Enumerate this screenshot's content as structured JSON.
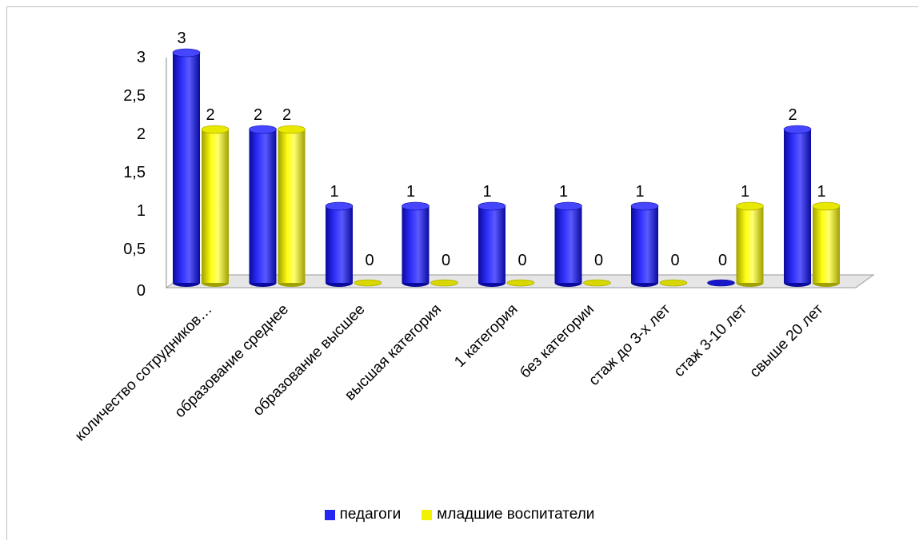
{
  "chart_data": {
    "type": "bar",
    "categories": [
      "количество сотрудников…",
      "образование среднее",
      "образование высшее",
      "высшая категория",
      "1 категория",
      "без категории",
      "стаж до 3-х лет",
      "стаж 3-10 лет",
      "свыше 20 лет"
    ],
    "series": [
      {
        "name": "педагоги",
        "color": "#2626F2",
        "values": [
          3,
          2,
          1,
          1,
          1,
          1,
          1,
          0,
          2
        ]
      },
      {
        "name": "младшие воспитатели",
        "color": "#F2F200",
        "values": [
          2,
          2,
          0,
          0,
          0,
          0,
          0,
          1,
          1
        ]
      }
    ],
    "yticks": [
      "0",
      "0,5",
      "1",
      "1,5",
      "2",
      "2,5",
      "3"
    ],
    "ylim": [
      0,
      3
    ],
    "grid": false,
    "legend_position": "bottom",
    "title": "",
    "xlabel": "",
    "ylabel": ""
  }
}
